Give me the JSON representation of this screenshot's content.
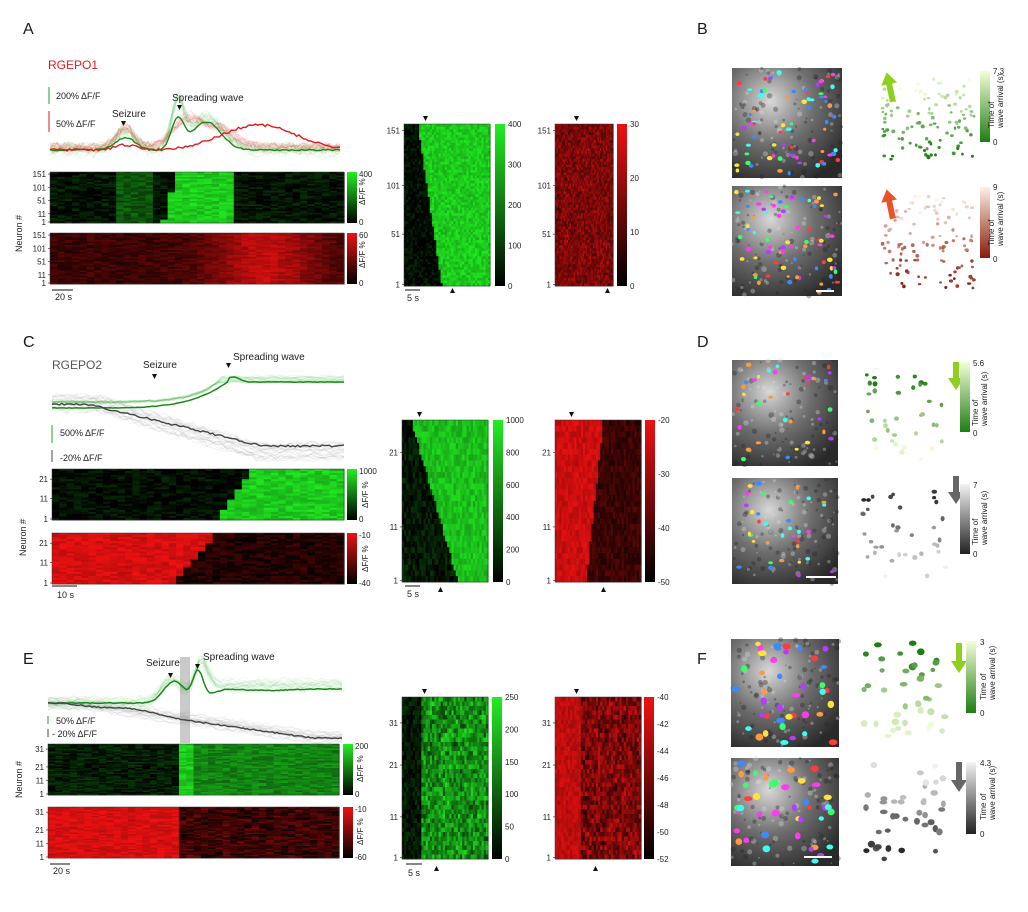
{
  "figure": {
    "panel_letters": [
      "A",
      "B",
      "C",
      "D",
      "E",
      "F"
    ],
    "neuron_axis_label": "Neuron #",
    "dff_percent_label": "ΔF/F %",
    "wave_arrival_label_line1": "Time of",
    "wave_arrival_label_line2": "wave arrival (s)",
    "event_seizure": "Seizure",
    "event_spreading_wave": "Spreading wave",
    "colors": {
      "green": "#19a319",
      "bright_green": "#22ee22",
      "red": "#e51b1b",
      "gray": "#555555",
      "yellowgreen": "#9acd32",
      "orange": "#e8532a"
    }
  },
  "panelA": {
    "indicator": "RGEPO1",
    "scale_top": "200% ΔF/F",
    "scale_bottom": "50% ΔF/F",
    "time_scale": "20 s",
    "heat1_ticks": [
      "151",
      "101",
      "51",
      "11",
      "1"
    ],
    "heat2_ticks": [
      "151",
      "101",
      "51",
      "11",
      "1"
    ],
    "heat1_cbar": {
      "max": "400",
      "min": "0"
    },
    "heat2_cbar": {
      "max": "60",
      "min": "0"
    },
    "zoom_ticks": [
      "151",
      "101",
      "51",
      "1"
    ],
    "zoom_time_scale": "5 s",
    "zoom_green_cbar": [
      "400",
      "300",
      "200",
      "100",
      "0"
    ],
    "zoom_red_cbar": [
      "30",
      "20",
      "10",
      "0"
    ]
  },
  "panelB": {
    "green_scale": {
      "max": "7.3",
      "min": "0"
    },
    "orange_scale": {
      "max": "9",
      "min": "0"
    }
  },
  "panelC": {
    "indicator": "RGEPO2",
    "scale_top": "500% ΔF/F",
    "scale_bottom": "-20% ΔF/F",
    "time_scale": "10 s",
    "heat1_ticks": [
      "21",
      "11",
      "1"
    ],
    "heat2_ticks": [
      "21",
      "11",
      "1"
    ],
    "heat1_cbar": {
      "max": "1000",
      "min": "0"
    },
    "heat2_cbar": {
      "max": "-10",
      "min": "-40"
    },
    "zoom_ticks": [
      "21",
      "11",
      "1"
    ],
    "zoom_time_scale": "5 s",
    "zoom_green_cbar": [
      "1000",
      "800",
      "600",
      "400",
      "200",
      "0"
    ],
    "zoom_red_cbar": [
      "-20",
      "-30",
      "-40",
      "-50"
    ]
  },
  "panelD": {
    "green_scale": {
      "max": "5.6",
      "min": "0"
    },
    "gray_scale": {
      "max": "7",
      "min": "0"
    }
  },
  "panelE": {
    "scale_top": "50% ΔF/F",
    "scale_bottom": "- 20% ΔF/F",
    "time_scale": "20 s",
    "heat1_ticks": [
      "31",
      "21",
      "11",
      "1"
    ],
    "heat2_ticks": [
      "31",
      "21",
      "11",
      "1"
    ],
    "heat1_cbar": {
      "max": "200",
      "min": "0"
    },
    "heat2_cbar": {
      "max": "-10",
      "min": "-60"
    },
    "zoom_ticks": [
      "31",
      "21",
      "11",
      "1"
    ],
    "zoom_time_scale": "5 s",
    "zoom_green_cbar": [
      "250",
      "200",
      "150",
      "100",
      "50",
      "0"
    ],
    "zoom_red_cbar": [
      "-40",
      "-42",
      "-44",
      "-46",
      "-48",
      "-50",
      "-52"
    ]
  },
  "panelF": {
    "green_scale": {
      "max": "3",
      "min": "0"
    },
    "gray_scale": {
      "max": "4.3",
      "min": "0"
    }
  }
}
